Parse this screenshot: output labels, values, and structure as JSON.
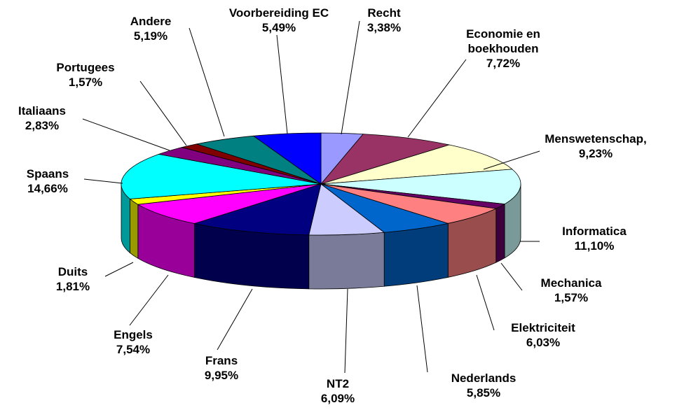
{
  "chart_data": {
    "type": "pie",
    "categories": [
      "Recht",
      "Economie en boekhouden",
      "Menswetenschap,",
      "Informatica",
      "Mechanica",
      "Elektriciteit",
      "Nederlands",
      "NT2",
      "Frans",
      "Engels",
      "Duits",
      "Spaans",
      "Italiaans",
      "Portugees",
      "Andere",
      "Voorbereiding EC"
    ],
    "values": [
      3.38,
      7.72,
      9.23,
      11.1,
      1.57,
      6.03,
      5.85,
      6.09,
      9.95,
      7.54,
      1.81,
      14.66,
      2.83,
      1.57,
      5.19,
      5.49
    ],
    "value_labels": [
      "3,38%",
      "7,72%",
      "9,23%",
      "11,10%",
      "1,57%",
      "6,03%",
      "5,85%",
      "6,09%",
      "9,95%",
      "7,54%",
      "1,81%",
      "14,66%",
      "2,83%",
      "1,57%",
      "5,19%",
      "5,49%"
    ],
    "colors": [
      "#9999ff",
      "#993366",
      "#ffffcc",
      "#ccffff",
      "#660066",
      "#ff8080",
      "#0066cc",
      "#ccccff",
      "#000080",
      "#ff00ff",
      "#ffff00",
      "#00ffff",
      "#800080",
      "#800000",
      "#008080",
      "#0000ff"
    ]
  }
}
